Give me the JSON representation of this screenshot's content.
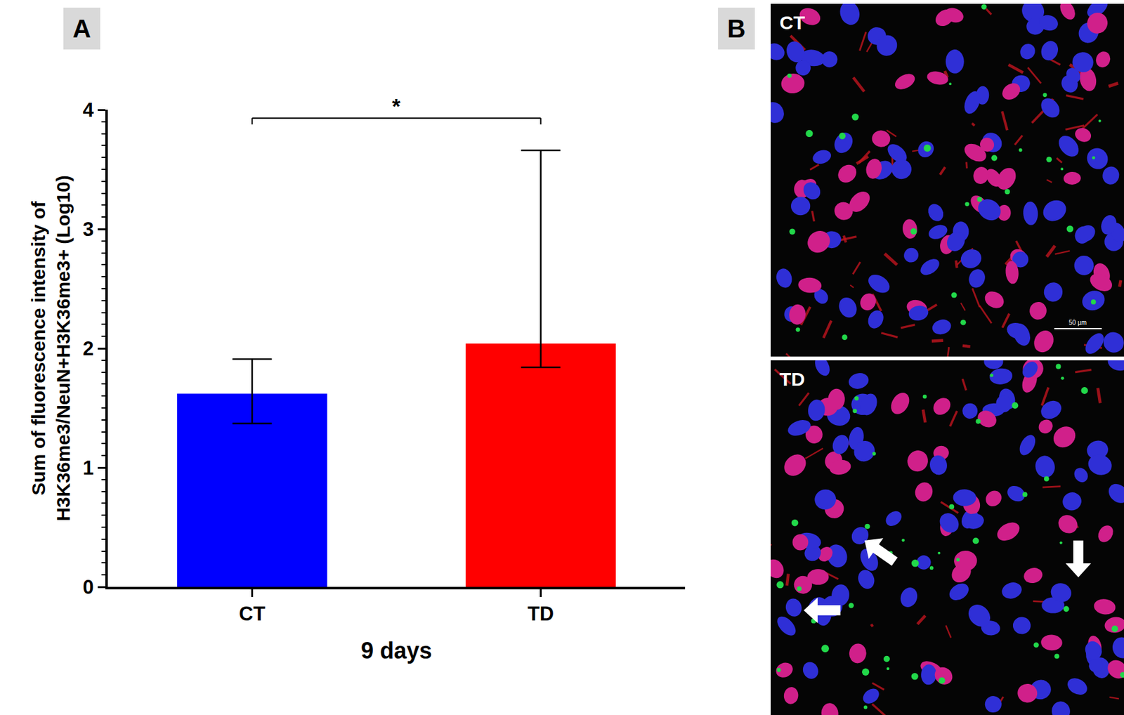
{
  "chart_data": {
    "type": "bar",
    "categories": [
      "CT",
      "TD"
    ],
    "values": [
      1.62,
      2.04
    ],
    "colors": [
      "#0000ff",
      "#ff0000"
    ],
    "error_upper": [
      0.29,
      1.62
    ],
    "error_lower": [
      0.25,
      0.2
    ],
    "ylim": [
      0,
      4
    ],
    "yticks": [
      0,
      1,
      2,
      3,
      4
    ],
    "y_label": "Sum of fluorescence intensity of\nH3K36me3/NeuN+H3K36me3+ (Log10)",
    "x_label": "9 days",
    "significance": {
      "from": "CT",
      "to": "TD",
      "y": 3.93,
      "label": "*"
    }
  },
  "panel_labels": [
    "A",
    "B"
  ],
  "images": [
    {
      "label": "CT",
      "scale_bar": "50 µm"
    },
    {
      "label": "TD"
    }
  ]
}
